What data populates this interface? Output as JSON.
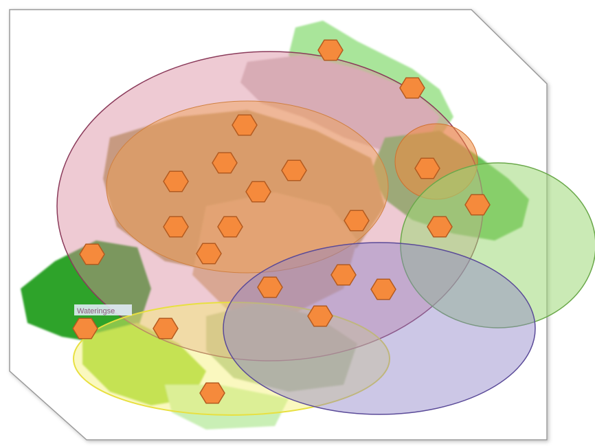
{
  "map": {
    "place_labels": [
      "Wateringse"
    ],
    "colors": {
      "sheet": "#ffffff",
      "sheet_edge": "#9a9a9a",
      "region_dark_green": "#2fa32a",
      "region_mid_green": "#6cc45a",
      "region_light_green": "#a9e59a",
      "region_lime": "#9fd83a",
      "region_pale_green": "#c9efb5",
      "region_khaki": "#b8a86a",
      "region_tan": "#d9c08a",
      "ellipse_pink": "#d98a9e",
      "ellipse_orange": "#f0a050",
      "ellipse_green": "#9ed878",
      "ellipse_purple": "#8f82c8",
      "ellipse_yellow": "#f4f070",
      "marker_fill": "#f58a3c",
      "marker_stroke": "#b35a1f",
      "label_text": "#8a5a7a"
    },
    "markers_icon": "hexagon-marker-icon",
    "marker_count": 22
  }
}
